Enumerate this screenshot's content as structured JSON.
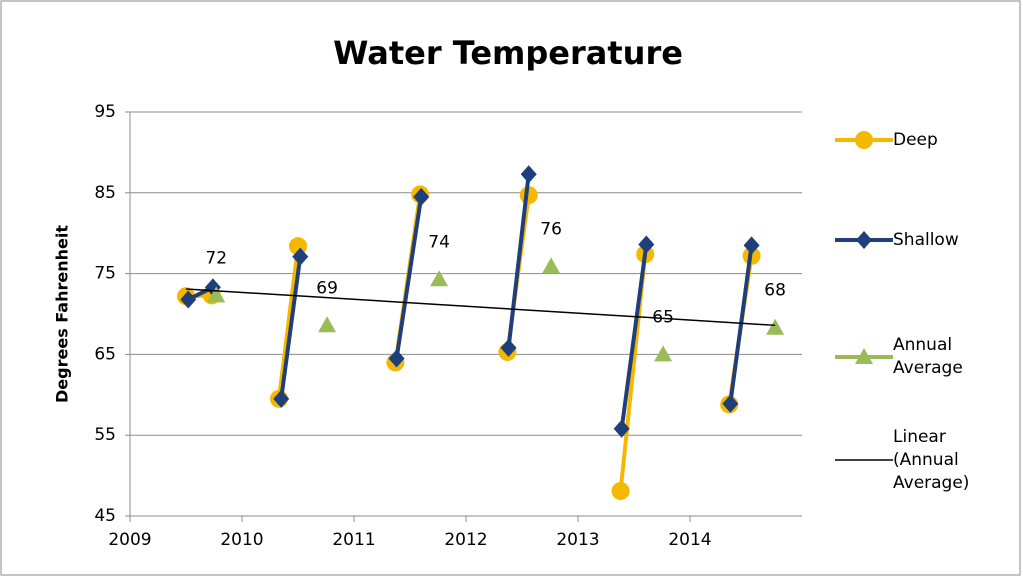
{
  "chart_data": {
    "type": "line",
    "title": "Water Temperature",
    "y_label": "Degrees Fahrenheit",
    "xlim": [
      2009,
      2015
    ],
    "xticks": [
      2009,
      2010,
      2011,
      2012,
      2013,
      2014
    ],
    "ylim": [
      45,
      95
    ],
    "yticks": [
      45,
      55,
      65,
      75,
      85,
      95
    ],
    "grid": true,
    "legend": "right",
    "series": [
      {
        "name": "Deep",
        "color": "#f5b800",
        "marker": "circle",
        "x": [
          2009.5,
          2009.73,
          null,
          2010.33,
          2010.5,
          null,
          2011.37,
          2011.59,
          null,
          2012.37,
          2012.56,
          null,
          2013.38,
          2013.6,
          null,
          2014.35,
          2014.55
        ],
        "values": [
          72.2,
          72.3,
          null,
          59.5,
          78.4,
          null,
          64,
          84.8,
          null,
          65.3,
          84.7,
          null,
          48.1,
          77.4,
          null,
          58.8,
          77.2
        ]
      },
      {
        "name": "Shallow",
        "color": "#1f3f7a",
        "marker": "diamond",
        "x": [
          2009.52,
          2009.74,
          null,
          2010.35,
          2010.52,
          null,
          2011.38,
          2011.6,
          null,
          2012.38,
          2012.56,
          null,
          2013.39,
          2013.61,
          null,
          2014.36,
          2014.55
        ],
        "values": [
          71.8,
          73.3,
          null,
          59.5,
          77.1,
          null,
          64.5,
          84.5,
          null,
          65.8,
          87.3,
          null,
          55.8,
          78.6,
          null,
          58.9,
          78.5
        ]
      },
      {
        "name": "Annual Average",
        "color": "#9bbb59",
        "marker": "triangle",
        "line": false,
        "x": [
          2009.77,
          2010.76,
          2011.76,
          2012.76,
          2013.76,
          2014.76
        ],
        "values": [
          72.3,
          68.6,
          74.3,
          75.9,
          65,
          68.3
        ],
        "value_labels": [
          "72",
          "69",
          "74",
          "76",
          "65",
          "68"
        ]
      },
      {
        "name": "Linear (Annual Average)",
        "color": "#000000",
        "marker": "none",
        "x": [
          2009.5,
          2014.76
        ],
        "values": [
          73.1,
          68.6
        ]
      }
    ]
  }
}
